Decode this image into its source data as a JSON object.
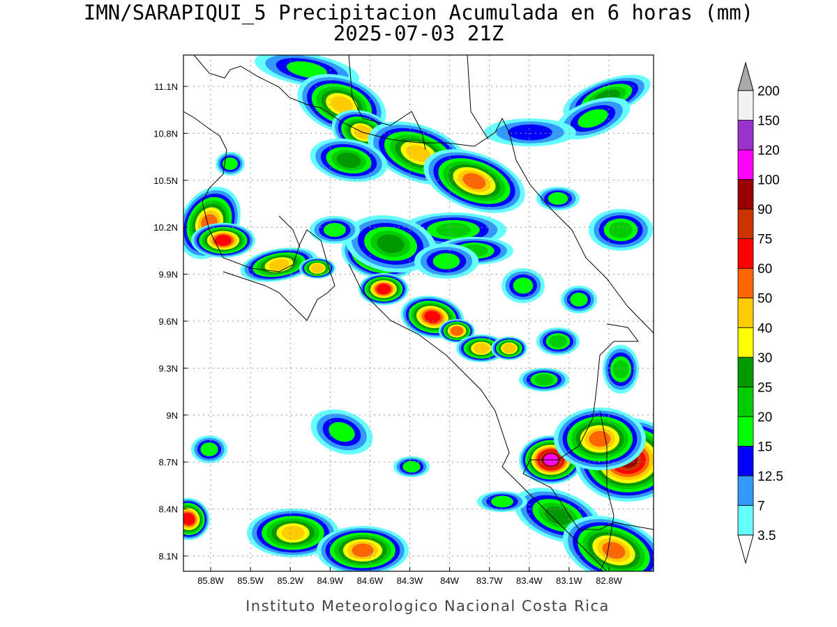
{
  "title": "IMN/SARAPIQUI_5 Precipitacion Acumulada en 6 horas (mm)",
  "subtitle": "2025-07-03 21Z",
  "map": {
    "lat_labels": [
      "11.1N",
      "10.8N",
      "10.5N",
      "10.2N",
      "9.9N",
      "9.6N",
      "9.3N",
      "9N",
      "8.7N",
      "8.4N",
      "8.1N"
    ],
    "lon_labels": [
      "85.8W",
      "85.5W",
      "85.2W",
      "84.9W",
      "84.6W",
      "84.3W",
      "84W",
      "83.7W",
      "83.4W",
      "83.1W",
      "82.8W"
    ]
  },
  "colorbar": {
    "levels": [
      3.5,
      7,
      12.5,
      15,
      20,
      25,
      30,
      40,
      50,
      60,
      75,
      90,
      100,
      120,
      150,
      200
    ],
    "colors": [
      "#66ffff",
      "#3399ff",
      "#0000ff",
      "#00ff00",
      "#00cc00",
      "#009900",
      "#ffff00",
      "#ffcc00",
      "#ff6600",
      "#ff0000",
      "#cc3300",
      "#990000",
      "#ff00ff",
      "#9933cc",
      "#f2f2f2"
    ],
    "over_color": "#aaaaaa",
    "under_color": "#ffffff"
  },
  "footer": "Instituto Meteorologico Nacional Costa Rica"
}
